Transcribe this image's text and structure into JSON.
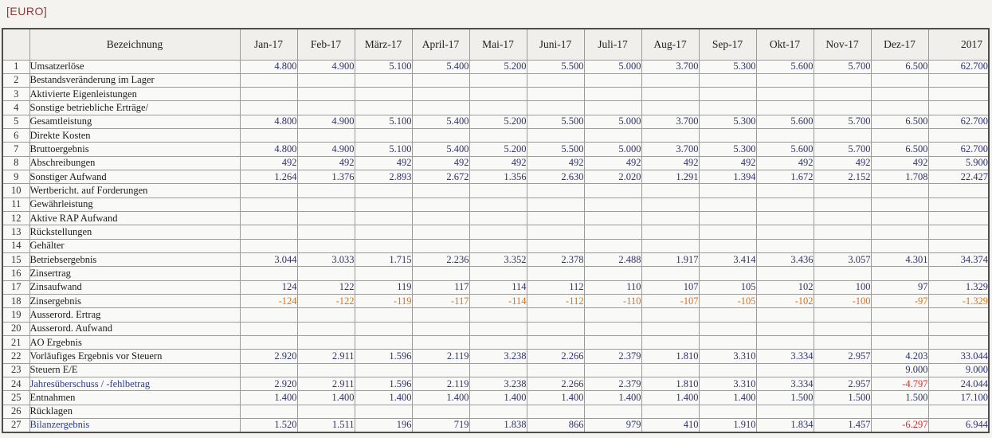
{
  "title": "[EURO]",
  "colors": {
    "title_red": "#8b3a3a",
    "highlight_yellow": "#f7f183",
    "pale_yellow_total_column": "#fbf8d7",
    "total_row_gray": "#d9d9d8",
    "number_blue": "#30336e",
    "negative_orange": "#e2700c",
    "negative_red": "#e8262c",
    "summary_label_blue": "#2c3b8e"
  },
  "table": {
    "corner_label": "",
    "name_header": "Bezeichnung",
    "columns": [
      "Jan-17",
      "Feb-17",
      "März-17",
      "April-17",
      "Mai-17",
      "Juni-17",
      "Juli-17",
      "Aug-17",
      "Sep-17",
      "Okt-17",
      "Nov-17",
      "Dez-17",
      "2017"
    ],
    "rows": [
      {
        "num": "1",
        "label": "Umsatzerlöse",
        "style": "normal",
        "values": [
          "4.800",
          "4.900",
          "5.100",
          "5.400",
          "5.200",
          "5.500",
          "5.000",
          "3.700",
          "5.300",
          "5.600",
          "5.700",
          "6.500",
          "62.700"
        ]
      },
      {
        "num": "2",
        "label": "Bestandsveränderung im Lager",
        "style": "normal",
        "values": [
          "",
          "",
          "",
          "",
          "",
          "",
          "",
          "",
          "",
          "",
          "",
          "",
          ""
        ]
      },
      {
        "num": "3",
        "label": "Aktivierte Eigenleistungen",
        "style": "normal",
        "values": [
          "",
          "",
          "",
          "",
          "",
          "",
          "",
          "",
          "",
          "",
          "",
          "",
          ""
        ]
      },
      {
        "num": "4",
        "label": "Sonstige betriebliche Erträge/",
        "style": "normal",
        "values": [
          "",
          "",
          "",
          "",
          "",
          "",
          "",
          "",
          "",
          "",
          "",
          "",
          ""
        ]
      },
      {
        "num": "5",
        "label": "Gesamtleistung",
        "style": "yellow",
        "values": [
          "4.800",
          "4.900",
          "5.100",
          "5.400",
          "5.200",
          "5.500",
          "5.000",
          "3.700",
          "5.300",
          "5.600",
          "5.700",
          "6.500",
          "62.700"
        ]
      },
      {
        "num": "6",
        "label": "Direkte Kosten",
        "style": "normal",
        "values": [
          "",
          "",
          "",
          "",
          "",
          "",
          "",
          "",
          "",
          "",
          "",
          "",
          ""
        ]
      },
      {
        "num": "7",
        "label": "Bruttoergebnis",
        "style": "yellow",
        "values": [
          "4.800",
          "4.900",
          "5.100",
          "5.400",
          "5.200",
          "5.500",
          "5.000",
          "3.700",
          "5.300",
          "5.600",
          "5.700",
          "6.500",
          "62.700"
        ]
      },
      {
        "num": "8",
        "label": "Abschreibungen",
        "style": "normal",
        "values": [
          "492",
          "492",
          "492",
          "492",
          "492",
          "492",
          "492",
          "492",
          "492",
          "492",
          "492",
          "492",
          "5.900"
        ]
      },
      {
        "num": "9",
        "label": "Sonstiger Aufwand",
        "style": "normal",
        "values": [
          "1.264",
          "1.376",
          "2.893",
          "2.672",
          "1.356",
          "2.630",
          "2.020",
          "1.291",
          "1.394",
          "1.672",
          "2.152",
          "1.708",
          "22.427"
        ]
      },
      {
        "num": "10",
        "label": "Wertbericht. auf Forderungen",
        "style": "normal",
        "values": [
          "",
          "",
          "",
          "",
          "",
          "",
          "",
          "",
          "",
          "",
          "",
          "",
          ""
        ]
      },
      {
        "num": "11",
        "label": "Gewährleistung",
        "style": "normal",
        "values": [
          "",
          "",
          "",
          "",
          "",
          "",
          "",
          "",
          "",
          "",
          "",
          "",
          ""
        ]
      },
      {
        "num": "12",
        "label": "Aktive RAP Aufwand",
        "style": "normal",
        "values": [
          "",
          "",
          "",
          "",
          "",
          "",
          "",
          "",
          "",
          "",
          "",
          "",
          ""
        ]
      },
      {
        "num": "13",
        "label": "Rückstellungen",
        "style": "normal",
        "values": [
          "",
          "",
          "",
          "",
          "",
          "",
          "",
          "",
          "",
          "",
          "",
          "",
          ""
        ]
      },
      {
        "num": "14",
        "label": "Gehälter",
        "style": "normal",
        "values": [
          "",
          "",
          "",
          "",
          "",
          "",
          "",
          "",
          "",
          "",
          "",
          "",
          ""
        ]
      },
      {
        "num": "15",
        "label": "Betriebsergebnis",
        "style": "yellow",
        "values": [
          "3.044",
          "3.033",
          "1.715",
          "2.236",
          "3.352",
          "2.378",
          "2.488",
          "1.917",
          "3.414",
          "3.436",
          "3.057",
          "4.301",
          "34.374"
        ]
      },
      {
        "num": "16",
        "label": "Zinsertrag",
        "style": "normal",
        "values": [
          "",
          "",
          "",
          "",
          "",
          "",
          "",
          "",
          "",
          "",
          "",
          "",
          ""
        ]
      },
      {
        "num": "17",
        "label": "Zinsaufwand",
        "style": "normal",
        "values": [
          "124",
          "122",
          "119",
          "117",
          "114",
          "112",
          "110",
          "107",
          "105",
          "102",
          "100",
          "97",
          "1.329"
        ]
      },
      {
        "num": "18",
        "label": "Zinsergebnis",
        "style": "yellow",
        "values": [
          "-124",
          "-122",
          "-119",
          "-117",
          "-114",
          "-112",
          "-110",
          "-107",
          "-105",
          "-102",
          "-100",
          "-97",
          "-1.329"
        ]
      },
      {
        "num": "19",
        "label": "Ausserord. Ertrag",
        "style": "normal",
        "values": [
          "",
          "",
          "",
          "",
          "",
          "",
          "",
          "",
          "",
          "",
          "",
          "",
          ""
        ]
      },
      {
        "num": "20",
        "label": "Ausserord. Aufwand",
        "style": "normal",
        "values": [
          "",
          "",
          "",
          "",
          "",
          "",
          "",
          "",
          "",
          "",
          "",
          "",
          ""
        ]
      },
      {
        "num": "21",
        "label": "AO Ergebnis",
        "style": "yellow",
        "values": [
          "",
          "",
          "",
          "",
          "",
          "",
          "",
          "",
          "",
          "",
          "",
          "",
          ""
        ]
      },
      {
        "num": "22",
        "label": "Vorläufiges Ergebnis vor Steuern",
        "style": "yellow",
        "values": [
          "2.920",
          "2.911",
          "1.596",
          "2.119",
          "3.238",
          "2.266",
          "2.379",
          "1.810",
          "3.310",
          "3.334",
          "2.957",
          "4.203",
          "33.044"
        ]
      },
      {
        "num": "23",
        "label": "Steuern E/E",
        "style": "normal",
        "values": [
          "",
          "",
          "",
          "",
          "",
          "",
          "",
          "",
          "",
          "",
          "",
          "9.000",
          "9.000"
        ]
      },
      {
        "num": "24",
        "label": "Jahresüberschuss / -fehlbetrag",
        "style": "gray",
        "values": [
          "2.920",
          "2.911",
          "1.596",
          "2.119",
          "3.238",
          "2.266",
          "2.379",
          "1.810",
          "3.310",
          "3.334",
          "2.957",
          "-4.797",
          "24.044"
        ]
      },
      {
        "num": "25",
        "label": "Entnahmen",
        "style": "normal",
        "values": [
          "1.400",
          "1.400",
          "1.400",
          "1.400",
          "1.400",
          "1.400",
          "1.400",
          "1.400",
          "1.400",
          "1.500",
          "1.500",
          "1.500",
          "17.100"
        ]
      },
      {
        "num": "26",
        "label": "Rücklagen",
        "style": "normal",
        "values": [
          "",
          "",
          "",
          "",
          "",
          "",
          "",
          "",
          "",
          "",
          "",
          "",
          ""
        ]
      },
      {
        "num": "27",
        "label": "Bilanzergebnis",
        "style": "gray",
        "values": [
          "1.520",
          "1.511",
          "196",
          "719",
          "1.838",
          "866",
          "979",
          "410",
          "1.910",
          "1.834",
          "1.457",
          "-6.297",
          "6.944"
        ]
      }
    ]
  }
}
